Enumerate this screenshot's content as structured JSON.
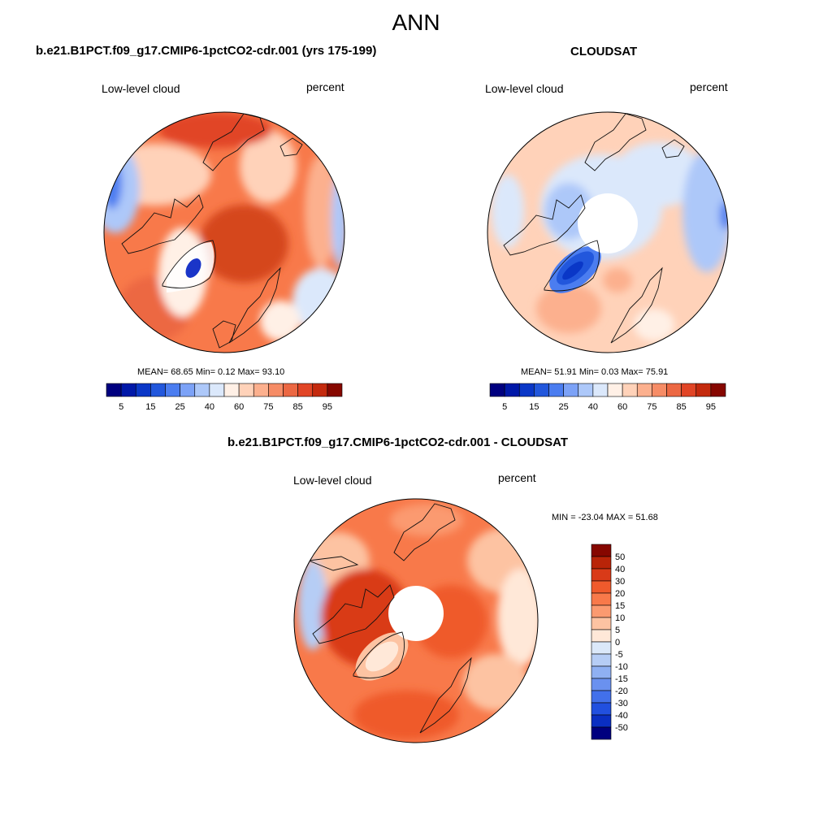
{
  "figure": {
    "main_title": "ANN",
    "panels": [
      {
        "id": "model",
        "title": "b.e21.B1PCT.f09_g17.CMIP6-1pctCO2-cdr.001 (yrs 175-199)",
        "variable": "Low-level cloud",
        "units": "percent",
        "stats": "MEAN=  68.65  Min=   0.12  Max=  93.10"
      },
      {
        "id": "obs",
        "title": "CLOUDSAT",
        "variable": "Low-level cloud",
        "units": "percent",
        "stats": "MEAN=  51.91  Min=   0.03  Max=  75.91"
      },
      {
        "id": "diff",
        "title": "b.e21.B1PCT.f09_g17.CMIP6-1pctCO2-cdr.001 - CLOUDSAT",
        "variable": "Low-level cloud",
        "units": "percent",
        "stats": "MIN = -23.04 MAX =  51.68"
      }
    ]
  },
  "chart_data": [
    {
      "type": "heatmap",
      "projection": "north-polar-stereographic",
      "title": "b.e21.B1PCT.f09_g17.CMIP6-1pctCO2-cdr.001 (yrs 175-199)",
      "variable": "Low-level cloud",
      "units": "percent",
      "mean": 68.65,
      "min": 0.12,
      "max": 93.1,
      "colorbar": {
        "orientation": "horizontal",
        "levels": [
          5,
          10,
          15,
          20,
          25,
          30,
          40,
          50,
          60,
          70,
          75,
          80,
          85,
          90,
          95
        ],
        "tick_labels": [
          "5",
          "15",
          "25",
          "40",
          "60",
          "75",
          "85",
          "95"
        ],
        "colors": [
          "#00007f",
          "#0018a8",
          "#0a37c7",
          "#2257dc",
          "#4b7df0",
          "#7ca2f7",
          "#adc8f9",
          "#dbe8fb",
          "#fff0e6",
          "#ffd2b9",
          "#fcb08e",
          "#f68c66",
          "#ec6843",
          "#e14526",
          "#c42a0e",
          "#860700"
        ]
      }
    },
    {
      "type": "heatmap",
      "projection": "north-polar-stereographic",
      "title": "CLOUDSAT",
      "variable": "Low-level cloud",
      "units": "percent",
      "mean": 51.91,
      "min": 0.03,
      "max": 75.91,
      "colorbar": {
        "orientation": "horizontal",
        "levels": [
          5,
          10,
          15,
          20,
          25,
          30,
          40,
          50,
          60,
          70,
          75,
          80,
          85,
          90,
          95
        ],
        "tick_labels": [
          "5",
          "15",
          "25",
          "40",
          "60",
          "75",
          "85",
          "95"
        ],
        "colors": [
          "#00007f",
          "#0018a8",
          "#0a37c7",
          "#2257dc",
          "#4b7df0",
          "#7ca2f7",
          "#adc8f9",
          "#dbe8fb",
          "#fff0e6",
          "#ffd2b9",
          "#fcb08e",
          "#f68c66",
          "#ec6843",
          "#e14526",
          "#c42a0e",
          "#860700"
        ]
      }
    },
    {
      "type": "heatmap",
      "projection": "north-polar-stereographic",
      "title": "b.e21.B1PCT.f09_g17.CMIP6-1pctCO2-cdr.001 - CLOUDSAT",
      "variable": "Low-level cloud",
      "units": "percent",
      "min": -23.04,
      "max": 51.68,
      "colorbar": {
        "orientation": "vertical",
        "levels": [
          50,
          40,
          30,
          20,
          15,
          10,
          5,
          0,
          -5,
          -10,
          -15,
          -20,
          -30,
          -40,
          -50
        ],
        "tick_labels": [
          "50",
          "40",
          "30",
          "20",
          "15",
          "10",
          "5",
          "0",
          "-5",
          "-10",
          "-15",
          "-20",
          "-30",
          "-40",
          "-50"
        ],
        "colors": [
          "#860700",
          "#b92408",
          "#d93a18",
          "#ef5a2c",
          "#f8794a",
          "#fb9a70",
          "#fdc3a2",
          "#ffe8d8",
          "#dbe8f9",
          "#b6cdf5",
          "#8fb0f2",
          "#6a91ef",
          "#4270ea",
          "#2150df",
          "#0a2fc2",
          "#00007f"
        ]
      }
    }
  ]
}
